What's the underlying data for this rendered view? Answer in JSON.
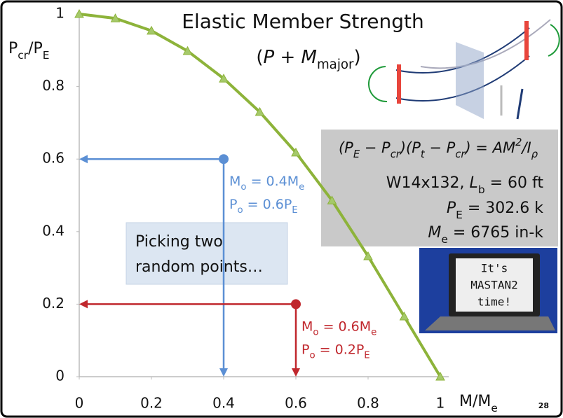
{
  "chart_data": {
    "type": "line",
    "title": "Elastic Member Strength",
    "subtitle": [
      {
        "text": "("
      },
      {
        "text": "P",
        "italic": true
      },
      {
        "text": " + "
      },
      {
        "text": "M",
        "italic": true
      },
      {
        "text": "major",
        "sub": true
      },
      {
        "text": ")"
      }
    ],
    "y_label": [
      {
        "text": "P"
      },
      {
        "text": "cr",
        "sub": true
      },
      {
        "text": "/P"
      },
      {
        "text": "E",
        "sub": true
      }
    ],
    "x_label": [
      {
        "text": "M/M"
      },
      {
        "text": "e",
        "sub": true
      }
    ],
    "x": [
      0,
      0.1,
      0.2,
      0.3,
      0.4,
      0.5,
      0.6,
      0.7,
      0.8,
      0.9,
      1
    ],
    "series": [
      {
        "color": "#8db33a",
        "values": [
          1,
          0.988,
          0.954,
          0.898,
          0.822,
          0.73,
          0.618,
          0.486,
          0.332,
          0.166,
          0
        ]
      }
    ],
    "xlim": [
      0,
      1
    ],
    "ylim": [
      0,
      1
    ],
    "xticks": [
      0,
      0.2,
      0.4,
      0.6,
      0.8,
      1
    ],
    "yticks": [
      0,
      0.2,
      0.4,
      0.6,
      0.8,
      1
    ],
    "points": [
      {
        "x": 0.4,
        "y": 0.6,
        "color": "#5b8fd4",
        "label": [
          [
            {
              "text": "M"
            },
            {
              "text": "o",
              "sub": true
            },
            {
              "text": " = 0.4M"
            },
            {
              "text": "e",
              "sub": true
            }
          ],
          [
            {
              "text": "P"
            },
            {
              "text": "o",
              "sub": true
            },
            {
              "text": " = 0.6P"
            },
            {
              "text": "E",
              "sub": true
            }
          ]
        ]
      },
      {
        "x": 0.6,
        "y": 0.2,
        "color": "#c0272d",
        "label": [
          [
            {
              "text": "M"
            },
            {
              "text": "o",
              "sub": true
            },
            {
              "text": " = 0.6M"
            },
            {
              "text": "e",
              "sub": true
            }
          ],
          [
            {
              "text": "P"
            },
            {
              "text": "o",
              "sub": true
            },
            {
              "text": " = 0.2P"
            },
            {
              "text": "E",
              "sub": true
            }
          ]
        ]
      }
    ],
    "callout": [
      "Picking two",
      "random points…"
    ],
    "info": [
      [
        {
          "text": "(P",
          "italic": true
        },
        {
          "text": "E",
          "sub": true,
          "italic": true
        },
        {
          "text": " − P",
          "italic": true
        },
        {
          "text": "cr",
          "sub": true,
          "italic": true
        },
        {
          "text": ")(P",
          "italic": true
        },
        {
          "text": "t",
          "sub": true,
          "italic": true
        },
        {
          "text": " − P",
          "italic": true
        },
        {
          "text": "cr",
          "sub": true,
          "italic": true
        },
        {
          "text": ") = AM",
          "italic": true
        },
        {
          "text": "2",
          "sup": true,
          "italic": true
        },
        {
          "text": "/",
          "italic": true
        },
        {
          "text": "I",
          "italic": true
        },
        {
          "text": "ρ",
          "sub": true,
          "italic": true
        }
      ],
      [
        {
          "text": "W14x132, "
        },
        {
          "text": "L",
          "italic": true
        },
        {
          "text": "b",
          "sub": true
        },
        {
          "text": " = 60 ft"
        }
      ],
      [
        {
          "text": "P",
          "italic": true
        },
        {
          "text": "E",
          "sub": true
        },
        {
          "text": " = 302.6 k"
        }
      ],
      [
        {
          "text": "M",
          "italic": true
        },
        {
          "text": "e",
          "sub": true
        },
        {
          "text": " = 6765 in-k"
        }
      ]
    ],
    "laptop": [
      "It's",
      "MASTAN2",
      "time!"
    ],
    "slide_number": "28"
  }
}
